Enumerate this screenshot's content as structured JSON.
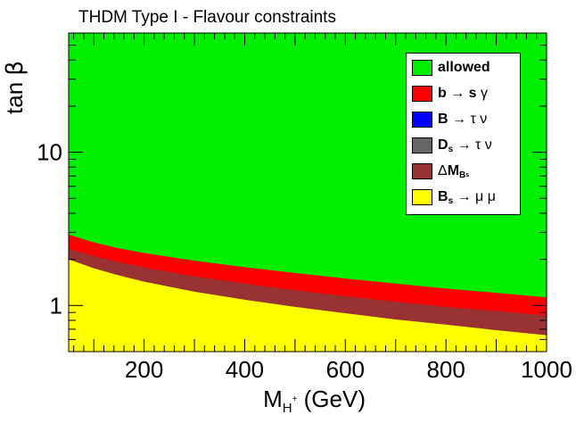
{
  "chart_data": {
    "type": "area",
    "title": "THDM Type I - Flavour constraints",
    "xlabel_main": "M",
    "xlabel_sub": "H",
    "xlabel_sup": "+",
    "xlabel_unit": " (GeV)",
    "ylabel_main": "tan ",
    "ylabel_greek": "β",
    "xlim": [
      50,
      1000
    ],
    "ylim": [
      0.5,
      60
    ],
    "yscale": "log",
    "x_ticks": [
      200,
      400,
      600,
      800,
      1000
    ],
    "x_tick_labels": [
      "200",
      "400",
      "600",
      "800",
      "1000"
    ],
    "y_ticks": [
      1,
      10
    ],
    "y_tick_labels": [
      "1",
      "10"
    ],
    "colors": {
      "allowed": "#00ee00",
      "b_s_gamma": "#ff0000",
      "B_tau_nu": "#0000ff",
      "Ds_tau_nu": "#666666",
      "delta_MBs": "#993333",
      "Bs_mu_mu": "#ffff00"
    },
    "x": [
      50,
      100,
      150,
      200,
      300,
      400,
      500,
      600,
      700,
      800,
      900,
      1000
    ],
    "series": [
      {
        "name": "Bs → μ μ",
        "key": "Bs_mu_mu",
        "upper": [
          2.0,
          1.75,
          1.57,
          1.43,
          1.23,
          1.09,
          0.98,
          0.89,
          0.81,
          0.75,
          0.69,
          0.64
        ]
      },
      {
        "name": "ΔM Bs",
        "key": "delta_MBs",
        "upper": [
          2.35,
          2.1,
          1.92,
          1.77,
          1.55,
          1.39,
          1.26,
          1.15,
          1.06,
          0.98,
          0.92,
          0.86
        ]
      },
      {
        "name": "b → s γ",
        "key": "b_s_gamma",
        "upper": [
          2.9,
          2.58,
          2.36,
          2.2,
          1.96,
          1.78,
          1.63,
          1.5,
          1.39,
          1.29,
          1.21,
          1.13
        ]
      },
      {
        "name": "allowed",
        "key": "allowed",
        "upper": [
          60,
          60,
          60,
          60,
          60,
          60,
          60,
          60,
          60,
          60,
          60,
          60
        ]
      }
    ],
    "legend": {
      "position": "top-right",
      "entries": [
        {
          "key": "allowed",
          "parts": [
            {
              "t": "allowed",
              "c": ""
            }
          ]
        },
        {
          "key": "b_s_gamma",
          "parts": [
            {
              "t": "b ",
              "c": ""
            },
            {
              "t": "→",
              "c": "sym"
            },
            {
              "t": " s ",
              "c": ""
            },
            {
              "t": "γ",
              "c": "sym"
            }
          ]
        },
        {
          "key": "B_tau_nu",
          "parts": [
            {
              "t": "B ",
              "c": ""
            },
            {
              "t": "→",
              "c": "sym"
            },
            {
              "t": " τ ",
              "c": "sym"
            },
            {
              "t": "ν",
              "c": "sym"
            }
          ]
        },
        {
          "key": "Ds_tau_nu",
          "parts": [
            {
              "t": "D",
              "c": ""
            },
            {
              "t": "s",
              "c": "sub"
            },
            {
              "t": " → ",
              "c": "sym"
            },
            {
              "t": "τ ",
              "c": "sym"
            },
            {
              "t": "ν",
              "c": "sym"
            }
          ]
        },
        {
          "key": "delta_MBs",
          "parts": [
            {
              "t": "Δ",
              "c": "sym"
            },
            {
              "t": "M",
              "c": ""
            },
            {
              "t": "B",
              "c": "sub"
            },
            {
              "t": "s",
              "c": "sub2"
            }
          ]
        },
        {
          "key": "Bs_mu_mu",
          "parts": [
            {
              "t": "B",
              "c": ""
            },
            {
              "t": "s",
              "c": "sub"
            },
            {
              "t": " → ",
              "c": "sym"
            },
            {
              "t": "μ ",
              "c": "sym"
            },
            {
              "t": "μ",
              "c": "sym"
            }
          ]
        }
      ]
    }
  }
}
